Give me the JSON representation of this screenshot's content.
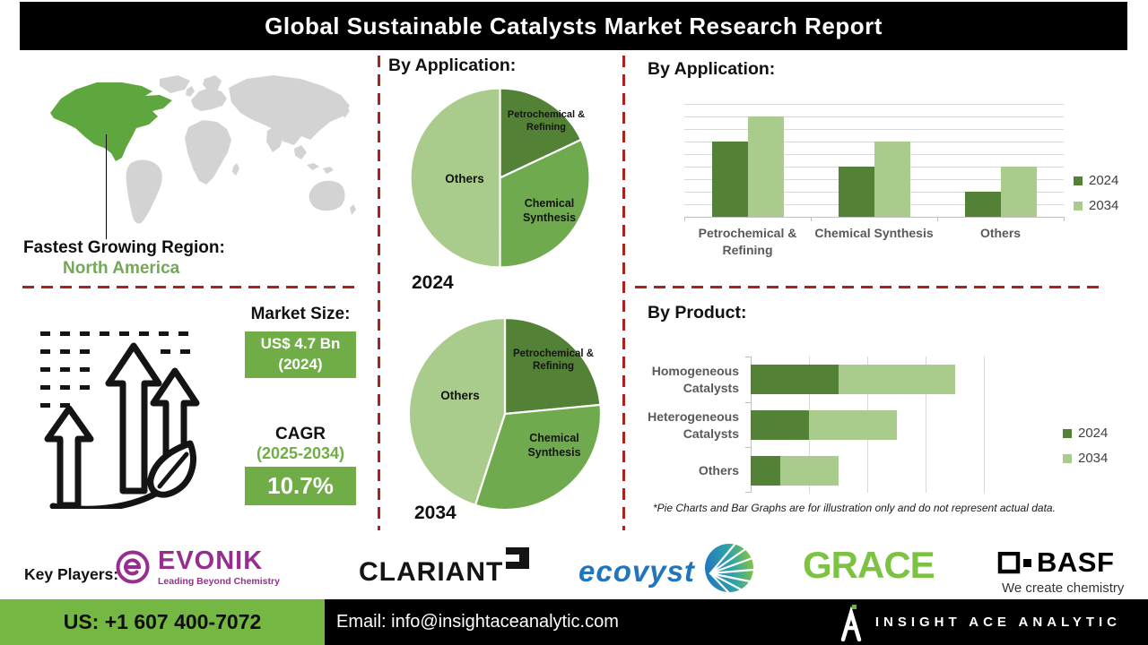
{
  "header": {
    "title": "Global Sustainable Catalysts Market Research Report"
  },
  "map_section": {
    "label": "Fastest Growing Region:",
    "region": "North America"
  },
  "market": {
    "heading": "Market Size:",
    "size_value": "US$ 4.7 Bn",
    "size_year": "(2024)",
    "cagr_label": "CAGR",
    "cagr_period": "(2025-2034)",
    "cagr_value": "10.7%"
  },
  "right": {
    "disclaimer": "*Pie Charts and Bar Graphs are for illustration only and do not represent actual data."
  },
  "key_players": {
    "label": "Key Players:",
    "evonik_name": "EVONIK",
    "evonik_tagline": "Leading Beyond Chemistry",
    "clariant_name": "CLARIANT",
    "ecovyst_name": "ecovyst",
    "grace_name": "GRACE",
    "basf_name": "BASF",
    "basf_tagline": "We create chemistry"
  },
  "footer": {
    "phone": "US: +1 607 400-7072",
    "email": "Email: info@insightaceanalytic.com",
    "brand": "INSIGHT ACE ANALYTIC"
  },
  "colors": {
    "series_2024_dark_green": "#538135",
    "pie_mid_green": "#6faa4e",
    "series_2034_light_green": "#a9cc8d",
    "accent_red_dash": "#a92220",
    "box_green": "#70ad47",
    "footer_green": "#74b843",
    "map_highlight_green": "#5ea63e"
  },
  "chart_data": [
    {
      "type": "pie",
      "id": "pie-application-2024",
      "title": "By Application:",
      "year": "2024",
      "labels": [
        "Petrochemical & Refining",
        "Chemical Synthesis",
        "Others"
      ],
      "values": [
        18,
        32,
        50
      ],
      "colors": [
        "#538135",
        "#6faa4e",
        "#a9cc8d"
      ],
      "legend_position": "none"
    },
    {
      "type": "pie",
      "id": "pie-application-2034",
      "title": "By Application:",
      "year": "2034",
      "labels": [
        "Petrochemical & Refining",
        "Chemical Synthesis",
        "Others"
      ],
      "values": [
        23.5,
        31.5,
        45
      ],
      "colors": [
        "#538135",
        "#6faa4e",
        "#a9cc8d"
      ],
      "legend_position": "none"
    },
    {
      "type": "bar",
      "id": "bar-application",
      "title": "By Application:",
      "orientation": "vertical",
      "categories": [
        "Petrochemical & Refining",
        "Chemical Synthesis",
        "Others"
      ],
      "series": [
        {
          "name": "2024",
          "color": "#538135",
          "values": [
            6,
            4,
            2
          ]
        },
        {
          "name": "2034",
          "color": "#a9cc8d",
          "values": [
            8,
            6,
            4
          ]
        }
      ],
      "ylim": [
        0,
        9
      ],
      "grid": true,
      "legend_position": "right"
    },
    {
      "type": "bar",
      "id": "bar-product",
      "title": "By Product:",
      "orientation": "horizontal",
      "stacked": true,
      "categories": [
        "Homogeneous Catalysts",
        "Heterogeneous Catalysts",
        "Others"
      ],
      "series": [
        {
          "name": "2024",
          "color": "#538135",
          "values": [
            1.5,
            1.0,
            0.5
          ]
        },
        {
          "name": "2034",
          "color": "#a9cc8d",
          "values": [
            2.0,
            1.5,
            1.0
          ]
        }
      ],
      "xlim": [
        0,
        4
      ],
      "grid": true,
      "legend_position": "right"
    }
  ]
}
